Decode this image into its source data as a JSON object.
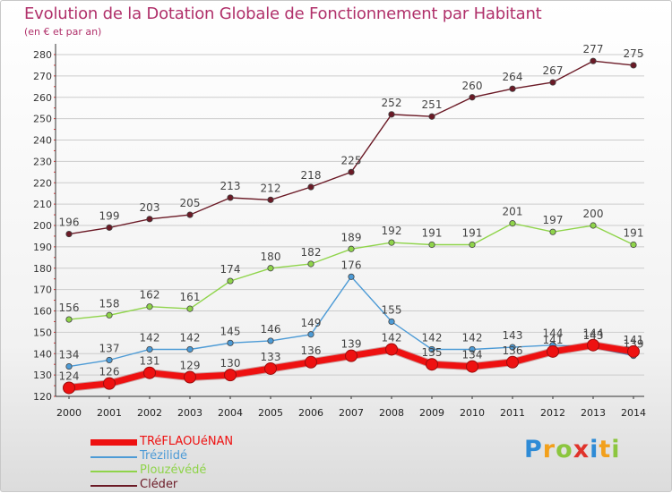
{
  "title": "Evolution de la Dotation Globale de Fonctionnement par Habitant",
  "subtitle": "(en € et par an)",
  "logo": {
    "letters": [
      {
        "ch": "P",
        "color": "#2e8bd6"
      },
      {
        "ch": "r",
        "color": "#f2a01c"
      },
      {
        "ch": "o",
        "color": "#8cc63f"
      },
      {
        "ch": "x",
        "color": "#e0332b"
      },
      {
        "ch": "i",
        "color": "#2e8bd6"
      },
      {
        "ch": "t",
        "color": "#f2a01c"
      },
      {
        "ch": "i",
        "color": "#8cc63f"
      }
    ]
  },
  "colors": {
    "title": "#b0306a",
    "axis": "#333333",
    "grid": "#cccccc",
    "tick_marks": "#e03a3a"
  },
  "chart_data": {
    "type": "line",
    "title": "Evolution de la Dotation Globale de Fonctionnement par Habitant",
    "subtitle": "(en € et par an)",
    "xlabel": "",
    "ylabel": "",
    "x": [
      "2000",
      "2001",
      "2002",
      "2003",
      "2004",
      "2005",
      "2006",
      "2007",
      "2008",
      "2009",
      "2010",
      "2011",
      "2012",
      "2013",
      "2014"
    ],
    "ylim": [
      120,
      280
    ],
    "yticks": [
      120,
      130,
      140,
      150,
      160,
      170,
      180,
      190,
      200,
      210,
      220,
      230,
      240,
      250,
      260,
      270,
      280
    ],
    "grid": "horizontal",
    "legend_position": "bottom-left",
    "series": [
      {
        "name": "TRéFLAOUéNAN",
        "color": "#ee1111",
        "values": [
          124,
          126,
          131,
          129,
          130,
          133,
          136,
          139,
          142,
          135,
          134,
          136,
          141,
          144,
          141
        ],
        "labels": [
          "124",
          "126",
          "131",
          "129",
          "130",
          "133",
          "136",
          "139",
          "142",
          "135",
          "134",
          "136",
          "141",
          "144",
          "141"
        ],
        "emphasis": true
      },
      {
        "name": "Trézilidé",
        "color": "#4d9bd6",
        "values": [
          134,
          137,
          142,
          142,
          145,
          146,
          149,
          176,
          155,
          142,
          142,
          143,
          144,
          143,
          139
        ],
        "labels": [
          "134",
          "137",
          "142",
          "142",
          "145",
          "146",
          "149",
          "176",
          "155",
          "142",
          "142",
          "143",
          "144",
          "143",
          "139"
        ],
        "emphasis": false
      },
      {
        "name": "Plouzévédé",
        "color": "#8fd44a",
        "values": [
          156,
          158,
          162,
          161,
          174,
          180,
          182,
          189,
          192,
          191,
          191,
          201,
          197,
          200,
          191
        ],
        "labels": [
          "156",
          "158",
          "162",
          "161",
          "174",
          "180",
          "182",
          "189",
          "192",
          "191",
          "191",
          "201",
          "197",
          "200",
          "191"
        ],
        "emphasis": false
      },
      {
        "name": "Cléder",
        "color": "#6b1a26",
        "values": [
          196,
          199,
          203,
          205,
          213,
          212,
          218,
          225,
          252,
          251,
          260,
          264,
          267,
          277,
          275
        ],
        "labels": [
          "196",
          "199",
          "203",
          "205",
          "213",
          "212",
          "218",
          "225",
          "252",
          "251",
          "260",
          "264",
          "267",
          "277",
          "275"
        ],
        "emphasis": false
      }
    ]
  }
}
